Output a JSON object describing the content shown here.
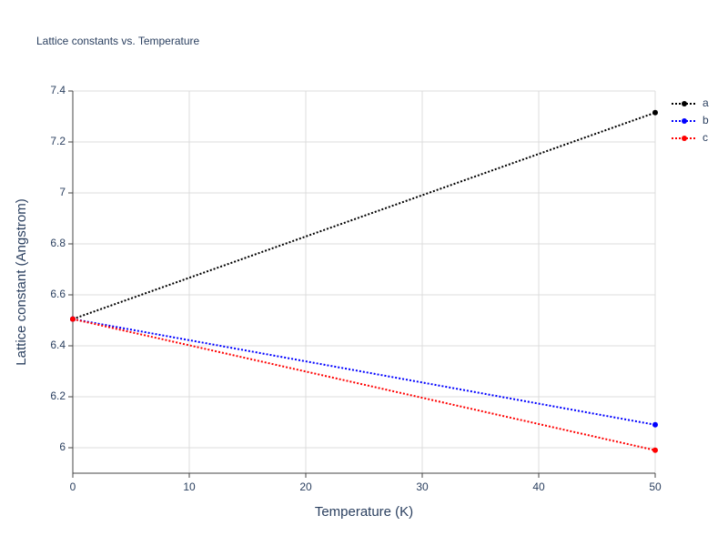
{
  "chart_data": {
    "type": "line",
    "title": "Lattice constants vs. Temperature",
    "x_label": "Temperature (K)",
    "y_label": "Lattice constant (Angstrom)",
    "x": [
      0,
      50
    ],
    "series": [
      {
        "name": "a",
        "color": "#000000",
        "values": [
          6.505,
          7.315
        ]
      },
      {
        "name": "b",
        "color": "#0000ff",
        "values": [
          6.505,
          6.09
        ]
      },
      {
        "name": "c",
        "color": "#ff0000",
        "values": [
          6.505,
          5.99
        ]
      }
    ],
    "xlim": [
      0,
      50
    ],
    "xticks": [
      0,
      10,
      20,
      30,
      40,
      50
    ],
    "ylim": [
      5.9,
      7.4
    ],
    "yticks": [
      6,
      6.2,
      6.4,
      6.6,
      6.8,
      7,
      7.2,
      7.4
    ],
    "grid": true,
    "legend": "right"
  }
}
